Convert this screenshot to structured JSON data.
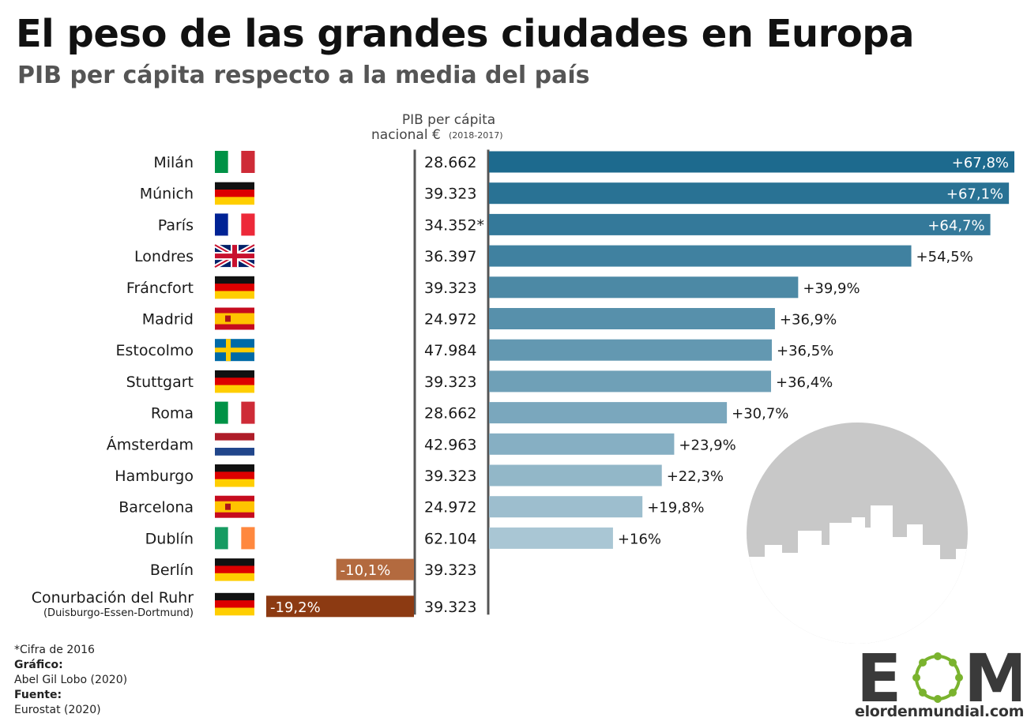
{
  "header": {
    "title": "El peso de las grandes ciudades en Europa",
    "subtitle": "PIB per cápita respecto a la media del país"
  },
  "column_header": {
    "line1": "PIB per cápita",
    "line2": "nacional €",
    "line2_small": "(2018-2017)"
  },
  "colors": {
    "positive_dark": "#1d6a8e",
    "positive_light": "#a9c6d4",
    "negative_light": "#b36a3f",
    "negative_dark": "#8c3a12",
    "axis": "#555555",
    "skyline": "#c8c8c8",
    "logo_dark": "#3a3a3a",
    "logo_green": "#7ab32e"
  },
  "chart_data": {
    "type": "bar",
    "orientation": "horizontal",
    "value_unit": "%",
    "categories": [
      "Milán",
      "Múnich",
      "París",
      "Londres",
      "Fráncfort",
      "Madrid",
      "Estocolmo",
      "Stuttgart",
      "Roma",
      "Ámsterdam",
      "Hamburgo",
      "Barcelona",
      "Dublín",
      "Berlín",
      "Conurbación del Ruhr"
    ],
    "category_notes": [
      "",
      "",
      "",
      "",
      "",
      "",
      "",
      "",
      "",
      "",
      "",
      "",
      "",
      "",
      "(Duisburgo-Essen-Dortmund)"
    ],
    "values": [
      67.8,
      67.1,
      64.7,
      54.5,
      39.9,
      36.9,
      36.5,
      36.4,
      30.7,
      23.9,
      22.3,
      19.8,
      16,
      -10.1,
      -19.2
    ],
    "value_labels": [
      "+67,8%",
      "+67,1%",
      "+64,7%",
      "+54,5%",
      "+39,9%",
      "+36,9%",
      "+36,5%",
      "+36,4%",
      "+30,7%",
      "+23,9%",
      "+22,3%",
      "+19,8%",
      "+16%",
      "-10,1%",
      "-19,2%"
    ],
    "national_gdp_per_capita": [
      "28.662",
      "39.323",
      "34.352*",
      "36.397",
      "39.323",
      "24.972",
      "47.984",
      "39.323",
      "28.662",
      "42.963",
      "39.323",
      "24.972",
      "62.104",
      "39.323",
      "39.323"
    ],
    "flags": [
      "it",
      "de",
      "fr",
      "gb",
      "de",
      "es",
      "se",
      "de",
      "it",
      "nl",
      "de",
      "es",
      "ie",
      "de",
      "de"
    ],
    "xlim": [
      -20,
      68
    ],
    "grid": false,
    "legend": "none"
  },
  "footer": {
    "note": "*Cifra de 2016",
    "graphic_label": "Gráfico:",
    "graphic_value": "Abel Gil Lobo (2020)",
    "source_label": "Fuente:",
    "source_value": "Eurostat (2020)"
  },
  "logo": {
    "letter_e": "E",
    "letter_m": "M",
    "url": "elordenmundial.com"
  }
}
